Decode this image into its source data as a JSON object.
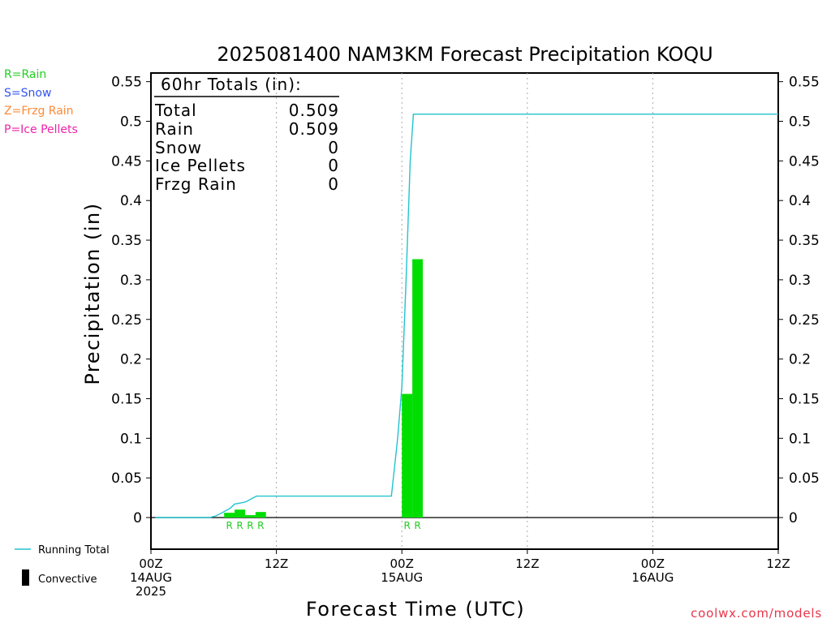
{
  "chart_data": {
    "type": "bar",
    "title": "2025081400 NAM3KM Forecast Precipitation KOQU",
    "xlabel": "Forecast Time (UTC)",
    "ylabel": "Precipitation (in)",
    "ylim": [
      -0.04,
      0.56
    ],
    "xlim_hours": [
      0,
      60
    ],
    "yticks": [
      "0.55",
      "0.5",
      "0.45",
      "0.4",
      "0.35",
      "0.3",
      "0.25",
      "0.2",
      "0.15",
      "0.1",
      "0.05",
      "0"
    ],
    "ytick_values": [
      0.55,
      0.5,
      0.45,
      0.4,
      0.35,
      0.3,
      0.25,
      0.2,
      0.15,
      0.1,
      0.05,
      0
    ],
    "xticks": [
      {
        "hour": 0,
        "line1": "00Z",
        "line2": "14AUG",
        "line3": "2025"
      },
      {
        "hour": 12,
        "line1": "12Z",
        "line2": "",
        "line3": ""
      },
      {
        "hour": 24,
        "line1": "00Z",
        "line2": "15AUG",
        "line3": ""
      },
      {
        "hour": 36,
        "line1": "12Z",
        "line2": "",
        "line3": ""
      },
      {
        "hour": 48,
        "line1": "00Z",
        "line2": "16AUG",
        "line3": ""
      },
      {
        "hour": 60,
        "line1": "12Z",
        "line2": "",
        "line3": ""
      }
    ],
    "grid": "dotted vertical lines at 12-hour intervals",
    "bars": [
      {
        "hour": 7,
        "value": 0.006,
        "type": "R"
      },
      {
        "hour": 8,
        "value": 0.01,
        "type": "R"
      },
      {
        "hour": 9,
        "value": 0.003,
        "type": "R"
      },
      {
        "hour": 10,
        "value": 0.007,
        "type": "R"
      },
      {
        "hour": 24,
        "value": 0.156,
        "type": "R"
      },
      {
        "hour": 25,
        "value": 0.326,
        "type": "R"
      }
    ],
    "running_total": {
      "name": "Running Total",
      "color": "#22c3cf",
      "points": [
        [
          0.4,
          0
        ],
        [
          5.6,
          0
        ],
        [
          6.2,
          0.002
        ],
        [
          6.8,
          0.006
        ],
        [
          7.6,
          0.012
        ],
        [
          8.0,
          0.017
        ],
        [
          8.8,
          0.019
        ],
        [
          9.1,
          0.02
        ],
        [
          9.8,
          0.025
        ],
        [
          10.1,
          0.027
        ],
        [
          10.8,
          0.027
        ],
        [
          23.0,
          0.027
        ],
        [
          23.6,
          0.1
        ],
        [
          24.0,
          0.165
        ],
        [
          24.4,
          0.3
        ],
        [
          24.8,
          0.45
        ],
        [
          25.1,
          0.509
        ],
        [
          60,
          0.509
        ]
      ]
    },
    "totals_box": {
      "heading": "60hr Totals (in):",
      "rows": [
        {
          "label": "Total",
          "value": "0.509"
        },
        {
          "label": "Rain",
          "value": "0.509"
        },
        {
          "label": "Snow",
          "value": "0"
        },
        {
          "label": "Ice Pellets",
          "value": "0"
        },
        {
          "label": "Frzg Rain",
          "value": "0"
        }
      ]
    },
    "type_legend": [
      {
        "text": "R=Rain",
        "color": "#22cc22"
      },
      {
        "text": "S=Snow",
        "color": "#3355ee"
      },
      {
        "text": "Z=Frzg Rain",
        "color": "#ff8833"
      },
      {
        "text": "P=Ice Pellets",
        "color": "#ee22aa"
      }
    ],
    "bottom_legend": {
      "running_total": "Running Total",
      "convective": "Convective"
    },
    "credit": "coolwx.com/models",
    "colors": {
      "bar": "#00dd00",
      "line": "#22c3cf",
      "credit": "#e8364a",
      "axis": "#000000",
      "grid": "#aaaaaa"
    }
  }
}
